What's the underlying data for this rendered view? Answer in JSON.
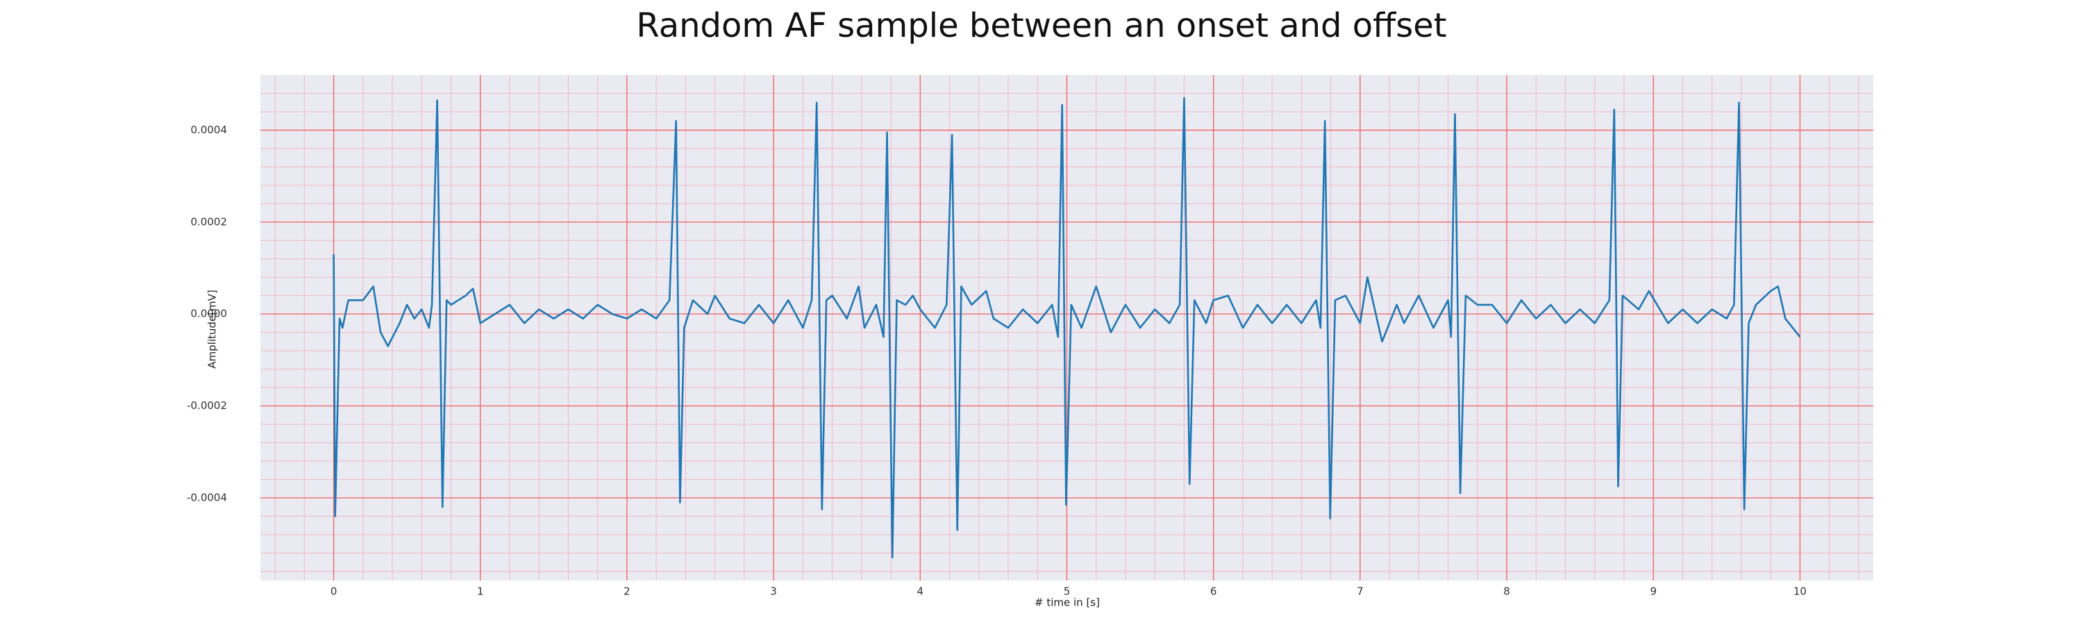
{
  "chart_data": {
    "type": "line",
    "title": "Random AF sample between an onset and offset",
    "xlabel": "# time in [s]",
    "ylabel": "Amplitude[mV]",
    "color": "#1f77b4",
    "background": "#eaeaf2",
    "grid": true,
    "minor_grid": true,
    "grid_color": "#f06060",
    "minor_grid_color": "#f2b8c6",
    "xlim": [
      -0.5,
      10.5
    ],
    "ylim": [
      -0.00058,
      0.00052
    ],
    "xticks": [
      0,
      1,
      2,
      3,
      4,
      5,
      6,
      7,
      8,
      9,
      10
    ],
    "yticks": [
      -0.0004,
      -0.0002,
      {
        "value": 0,
        "label": "0.0000"
      },
      0.0002,
      0.0004
    ],
    "x": [
      0.0,
      0.01,
      0.04,
      0.06,
      0.1,
      0.2,
      0.27,
      0.32,
      0.37,
      0.45,
      0.5,
      0.55,
      0.6,
      0.65,
      0.67,
      0.706,
      0.742,
      0.77,
      0.8,
      0.9,
      0.95,
      1.0,
      1.1,
      1.2,
      1.3,
      1.4,
      1.5,
      1.6,
      1.7,
      1.8,
      1.9,
      2.0,
      2.1,
      2.2,
      2.29,
      2.335,
      2.362,
      2.39,
      2.45,
      2.55,
      2.6,
      2.7,
      2.8,
      2.9,
      3.0,
      3.1,
      3.2,
      3.26,
      3.294,
      3.33,
      3.36,
      3.4,
      3.5,
      3.58,
      3.62,
      3.7,
      3.75,
      3.774,
      3.81,
      3.84,
      3.9,
      3.95,
      4.0,
      4.1,
      4.18,
      4.217,
      4.253,
      4.28,
      4.35,
      4.45,
      4.5,
      4.6,
      4.7,
      4.8,
      4.9,
      4.94,
      4.968,
      4.995,
      5.03,
      5.1,
      5.2,
      5.3,
      5.4,
      5.5,
      5.6,
      5.7,
      5.77,
      5.8,
      5.837,
      5.87,
      5.95,
      6.0,
      6.1,
      6.2,
      6.3,
      6.4,
      6.5,
      6.6,
      6.7,
      6.73,
      6.76,
      6.796,
      6.83,
      6.9,
      7.0,
      7.05,
      7.15,
      7.25,
      7.3,
      7.4,
      7.5,
      7.6,
      7.62,
      7.647,
      7.683,
      7.72,
      7.8,
      7.9,
      8.0,
      8.1,
      8.2,
      8.3,
      8.4,
      8.5,
      8.6,
      8.7,
      8.733,
      8.76,
      8.79,
      8.9,
      8.97,
      9.1,
      9.2,
      9.3,
      9.4,
      9.5,
      9.55,
      9.584,
      9.62,
      9.65,
      9.7,
      9.8,
      9.85,
      9.9,
      10.0
    ],
    "values": [
      0.00013,
      -0.00044,
      -1e-05,
      -3e-05,
      3e-05,
      3e-05,
      6e-05,
      -4e-05,
      -7e-05,
      -2e-05,
      2e-05,
      -1e-05,
      1e-05,
      -3e-05,
      2e-05,
      0.000465,
      -0.00042,
      3e-05,
      2e-05,
      4e-05,
      5.5e-05,
      -2e-05,
      0.0,
      2e-05,
      -2e-05,
      1e-05,
      -1e-05,
      1e-05,
      -1e-05,
      2e-05,
      0.0,
      -1e-05,
      1e-05,
      -1e-05,
      3e-05,
      0.00042,
      -0.00041,
      -3e-05,
      3e-05,
      0.0,
      4e-05,
      -1e-05,
      -2e-05,
      2e-05,
      -2e-05,
      3e-05,
      -3e-05,
      3e-05,
      0.00046,
      -0.000425,
      3e-05,
      4e-05,
      -1e-05,
      6e-05,
      -3e-05,
      2e-05,
      -5e-05,
      0.000395,
      -0.00053,
      3e-05,
      2e-05,
      4e-05,
      1e-05,
      -3e-05,
      2e-05,
      0.00039,
      -0.00047,
      6e-05,
      2e-05,
      5e-05,
      -1e-05,
      -3e-05,
      1e-05,
      -2e-05,
      2e-05,
      -5e-05,
      0.000455,
      -0.000415,
      2e-05,
      -3e-05,
      6e-05,
      -4e-05,
      2e-05,
      -3e-05,
      1e-05,
      -2e-05,
      2e-05,
      0.00047,
      -0.00037,
      3e-05,
      -2e-05,
      3e-05,
      4e-05,
      -3e-05,
      2e-05,
      -2e-05,
      2e-05,
      -2e-05,
      3e-05,
      -3e-05,
      0.00042,
      -0.000445,
      3e-05,
      4e-05,
      -2e-05,
      8e-05,
      -6e-05,
      2e-05,
      -2e-05,
      4e-05,
      -3e-05,
      3e-05,
      -5e-05,
      0.000435,
      -0.00039,
      4e-05,
      2e-05,
      2e-05,
      -2e-05,
      3e-05,
      -1e-05,
      2e-05,
      -2e-05,
      1e-05,
      -2e-05,
      3e-05,
      0.000445,
      -0.000375,
      4e-05,
      1e-05,
      5e-05,
      -2e-05,
      1e-05,
      -2e-05,
      1e-05,
      -1e-05,
      2e-05,
      0.00046,
      -0.000425,
      -2e-05,
      2e-05,
      5e-05,
      6e-05,
      -1e-05,
      -5e-05
    ]
  }
}
